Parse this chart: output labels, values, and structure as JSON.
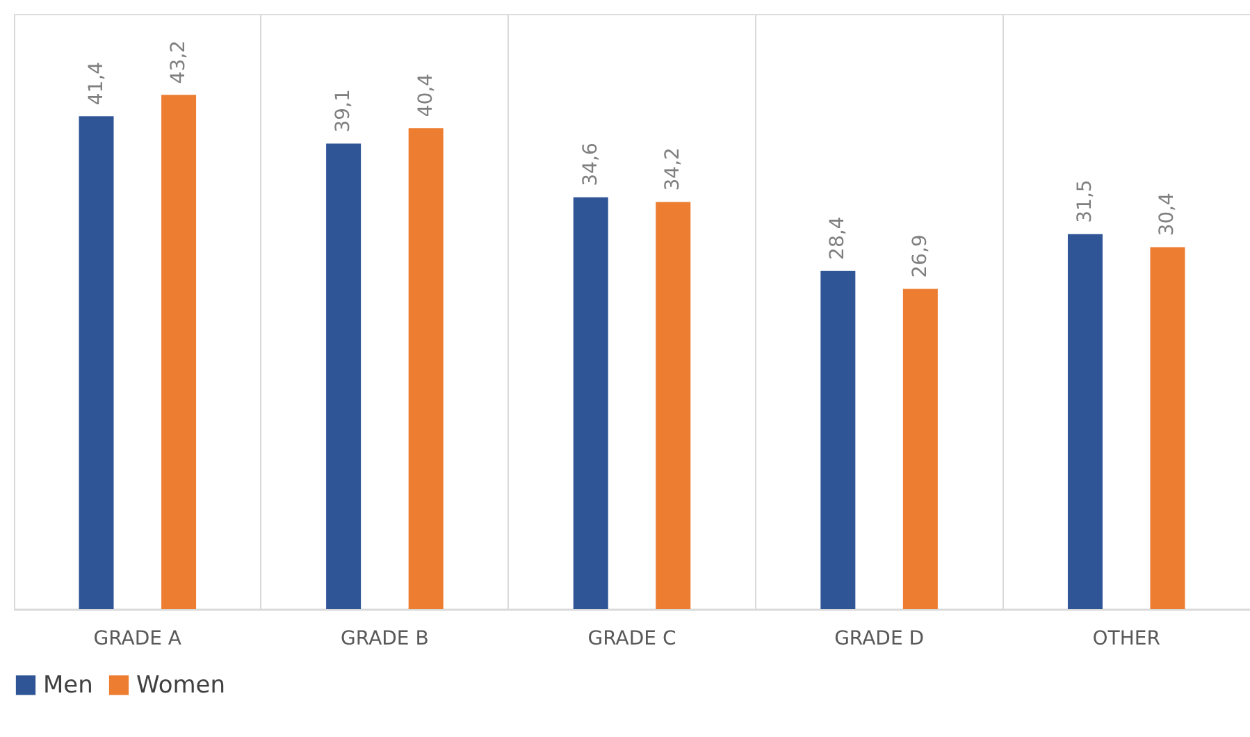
{
  "chart_data": {
    "type": "bar",
    "categories": [
      "GRADE A",
      "GRADE B",
      "GRADE C",
      "GRADE D",
      "OTHER"
    ],
    "series": [
      {
        "name": "Men",
        "color": "#2f5597",
        "values": [
          41.4,
          39.1,
          34.6,
          28.4,
          31.5
        ],
        "value_labels": [
          "41,4",
          "39,1",
          "34,6",
          "28,4",
          "31,5"
        ]
      },
      {
        "name": "Women",
        "color": "#ed7d31",
        "values": [
          43.2,
          40.4,
          34.2,
          26.9,
          30.4
        ],
        "value_labels": [
          "43,2",
          "40,4",
          "34,2",
          "26,9",
          "30,4"
        ]
      }
    ],
    "ylim": [
      0,
      50
    ],
    "grid": "x",
    "legend": "bottom",
    "tick_labels": "x"
  }
}
